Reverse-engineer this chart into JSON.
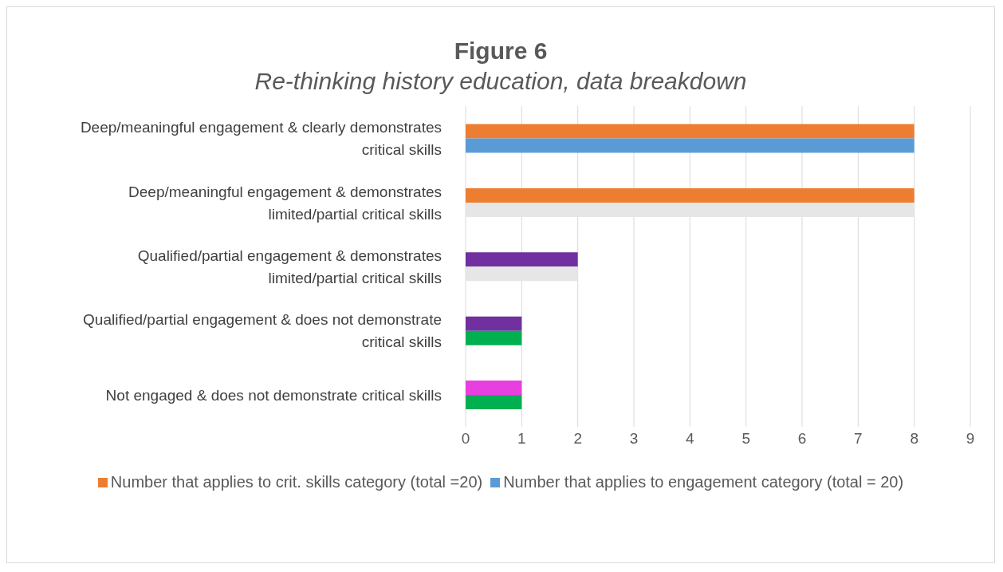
{
  "chart_data": {
    "type": "bar",
    "orientation": "horizontal",
    "title": "Figure 6",
    "subtitle": "Re-thinking history education, data breakdown",
    "categories": [
      "Deep/meaningful engagement & clearly demonstrates critical skills",
      "Deep/meaningful engagement & demonstrates limited/partial critical skills",
      "Qualified/partial engagement & demonstrates limited/partial critical skills",
      "Qualified/partial engagement & does not demonstrate critical skills",
      "Not engaged & does not demonstrate critical skills"
    ],
    "series": [
      {
        "name": "Number that applies to crit. skills category (total =20)",
        "color": "#ed7d31",
        "colors": [
          "#ed7d31",
          "#ed7d31",
          "#7030a0",
          "#7030a0",
          "#e83fe0"
        ],
        "values": [
          8,
          8,
          2,
          1,
          1
        ]
      },
      {
        "name": "Number that applies to engagement category (total = 20)",
        "color": "#5b9bd5",
        "colors": [
          "#5b9bd5",
          "#e7e6e6",
          "#e7e6e6",
          "#00b050",
          "#00b050"
        ],
        "values": [
          8,
          8,
          2,
          1,
          1
        ]
      }
    ],
    "xlim": [
      0,
      9
    ],
    "xticks": [
      0,
      1,
      2,
      3,
      4,
      5,
      6,
      7,
      8,
      9
    ],
    "grid": "x",
    "legend": "bottom"
  }
}
